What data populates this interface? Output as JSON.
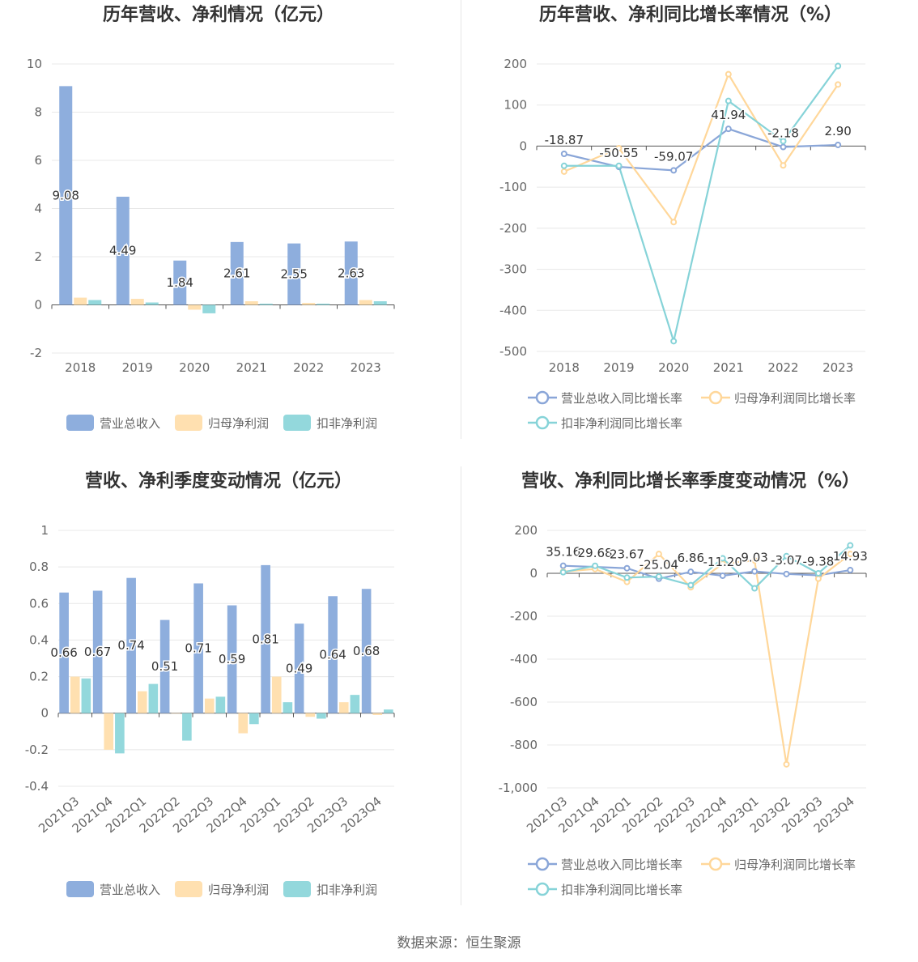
{
  "colors": {
    "revenue": "#8eaedd",
    "net_profit": "#ffe0b0",
    "deducted_profit": "#93d8dc",
    "revenue_line": "#8aa6d8",
    "net_profit_line": "#ffd79a",
    "deducted_profit_line": "#86d3d8",
    "axis": "#666666",
    "grid": "#e8e8e8",
    "label": "#333333"
  },
  "footer": {
    "source": "数据来源：恒生聚源"
  },
  "chart_data": [
    {
      "id": "annual_amounts",
      "type": "bar",
      "title": "历年营收、净利情况（亿元）",
      "categories": [
        "2018",
        "2019",
        "2020",
        "2021",
        "2022",
        "2023"
      ],
      "ylim": [
        -2,
        10
      ],
      "yticks": [
        -2,
        0,
        2,
        4,
        6,
        8,
        10
      ],
      "grid": true,
      "legend_position": "bottom",
      "series": [
        {
          "name": "营业总收入",
          "values": [
            9.08,
            4.49,
            1.84,
            2.61,
            2.55,
            2.63
          ],
          "labels": [
            "9.08",
            "4.49",
            "1.84",
            "2.61",
            "2.55",
            "2.63"
          ]
        },
        {
          "name": "归母净利润",
          "values": [
            0.3,
            0.25,
            -0.2,
            0.15,
            0.08,
            0.2
          ]
        },
        {
          "name": "扣非净利润",
          "values": [
            0.2,
            0.1,
            -0.35,
            0.05,
            0.05,
            0.15
          ]
        }
      ]
    },
    {
      "id": "annual_growth",
      "type": "line",
      "title": "历年营收、净利同比增长率情况（%）",
      "categories": [
        "2018",
        "2019",
        "2020",
        "2021",
        "2022",
        "2023"
      ],
      "ylim": [
        -500,
        200
      ],
      "yticks": [
        -500,
        -400,
        -300,
        -200,
        -100,
        0,
        100,
        200
      ],
      "grid": true,
      "legend_position": "bottom",
      "series": [
        {
          "name": "营业总收入同比增长率",
          "values": [
            -18.87,
            -50.55,
            -59.07,
            41.94,
            -2.18,
            2.9
          ],
          "labels": [
            "-18.87",
            "-50.55",
            "-59.07",
            "41.94",
            "-2.18",
            "2.90"
          ]
        },
        {
          "name": "归母净利润同比增长率",
          "values": [
            -62,
            -5,
            -185,
            175,
            -47,
            150
          ]
        },
        {
          "name": "扣非净利润同比增长率",
          "values": [
            -48,
            -48,
            -475,
            110,
            12,
            195
          ]
        }
      ]
    },
    {
      "id": "quarterly_amounts",
      "type": "bar",
      "title": "营收、净利季度变动情况（亿元）",
      "categories": [
        "2021Q3",
        "2021Q4",
        "2022Q1",
        "2022Q2",
        "2022Q3",
        "2022Q4",
        "2023Q1",
        "2023Q2",
        "2023Q3",
        "2023Q4"
      ],
      "ylim": [
        -0.4,
        1
      ],
      "yticks": [
        -0.4,
        -0.2,
        0,
        0.2,
        0.4,
        0.6,
        0.8,
        1
      ],
      "grid": true,
      "legend_position": "bottom",
      "series": [
        {
          "name": "营业总收入",
          "values": [
            0.66,
            0.67,
            0.74,
            0.51,
            0.71,
            0.59,
            0.81,
            0.49,
            0.64,
            0.68
          ],
          "labels": [
            "0.66",
            "0.67",
            "0.74",
            "0.51",
            "0.71",
            "0.59",
            "0.81",
            "0.49",
            "0.64",
            "0.68"
          ]
        },
        {
          "name": "归母净利润",
          "values": [
            0.2,
            -0.2,
            0.12,
            0.0,
            0.08,
            -0.11,
            0.2,
            -0.02,
            0.06,
            -0.01
          ]
        },
        {
          "name": "扣非净利润",
          "values": [
            0.19,
            -0.22,
            0.16,
            -0.15,
            0.09,
            -0.06,
            0.06,
            -0.03,
            0.1,
            0.02
          ]
        }
      ]
    },
    {
      "id": "quarterly_growth",
      "type": "line",
      "title": "营收、净利同比增长率季度变动情况（%）",
      "categories": [
        "2021Q3",
        "2021Q4",
        "2022Q1",
        "2022Q2",
        "2022Q3",
        "2022Q4",
        "2023Q1",
        "2023Q2",
        "2023Q3",
        "2023Q4"
      ],
      "ylim": [
        -1000,
        200
      ],
      "yticks": [
        -1000,
        -800,
        -600,
        -400,
        -200,
        0,
        200
      ],
      "grid": true,
      "legend_position": "bottom",
      "series": [
        {
          "name": "营业总收入同比增长率",
          "values": [
            35.16,
            29.68,
            23.67,
            -25.04,
            6.86,
            -11.2,
            9.03,
            -3.07,
            -9.38,
            14.93
          ],
          "labels": [
            "35.16",
            "29.68",
            "23.67",
            "-25.04",
            "6.86",
            "-11.20",
            "9.03",
            "-3.07",
            "-9.38",
            "14.93"
          ]
        },
        {
          "name": "归母净利润同比增长率",
          "values": [
            8,
            20,
            -40,
            90,
            -65,
            45,
            60,
            -890,
            -25,
            90
          ]
        },
        {
          "name": "扣非净利润同比增长率",
          "values": [
            5,
            35,
            -20,
            -15,
            -55,
            70,
            -70,
            80,
            0,
            130
          ]
        }
      ]
    }
  ]
}
